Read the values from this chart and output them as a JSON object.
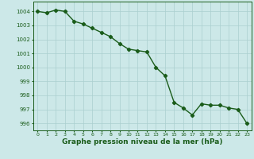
{
  "x": [
    0,
    1,
    2,
    3,
    4,
    5,
    6,
    7,
    8,
    9,
    10,
    11,
    12,
    13,
    14,
    15,
    16,
    17,
    18,
    19,
    20,
    21,
    22,
    23
  ],
  "y": [
    1004.0,
    1003.9,
    1004.1,
    1004.0,
    1003.3,
    1003.1,
    1002.8,
    1002.5,
    1002.2,
    1001.7,
    1001.3,
    1001.2,
    1001.1,
    1000.0,
    999.4,
    997.5,
    997.1,
    996.6,
    997.4,
    997.3,
    997.3,
    997.1,
    997.0,
    996.0
  ],
  "line_color": "#1a5c1a",
  "marker": "D",
  "marker_size": 2.2,
  "linewidth": 1.0,
  "background_color": "#cce8e8",
  "grid_color": "#aacfcf",
  "xlabel": "Graphe pression niveau de la mer (hPa)",
  "xlabel_fontsize": 6.5,
  "ytick_labels": [
    996,
    997,
    998,
    999,
    1000,
    1001,
    1002,
    1003,
    1004
  ],
  "xtick_labels": [
    "0",
    "1",
    "2",
    "3",
    "4",
    "5",
    "6",
    "7",
    "8",
    "9",
    "10",
    "11",
    "12",
    "13",
    "14",
    "15",
    "16",
    "17",
    "18",
    "19",
    "20",
    "21",
    "22",
    "23"
  ],
  "ylim": [
    995.5,
    1004.7
  ],
  "xlim": [
    -0.5,
    23.5
  ]
}
